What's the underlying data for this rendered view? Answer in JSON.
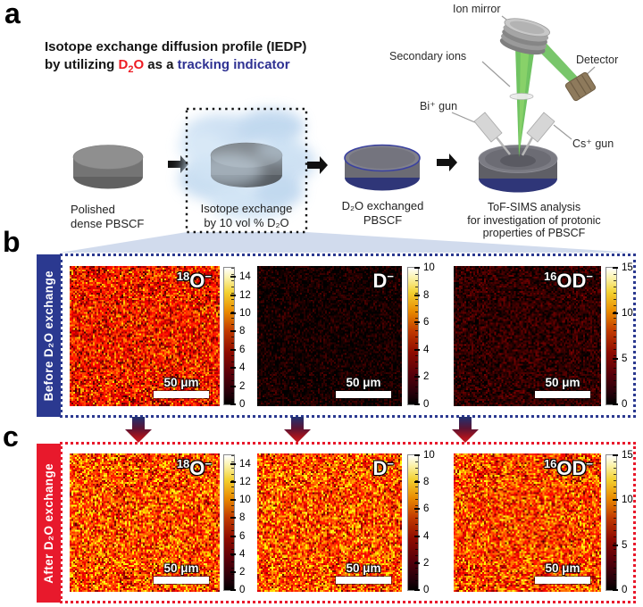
{
  "panel_a": {
    "label": "a",
    "title": {
      "line1": "Isotope exchange diffusion profile (IEDP)",
      "line2_pre": "by utilizing ",
      "d2o_d": "D",
      "d2o_sub": "2",
      "d2o_o": "O",
      "line2_mid": " as a ",
      "line2_highlight": "tracking indicator"
    },
    "steps": {
      "step1_line1": "Polished",
      "step1_line2": "dense PBSCF",
      "step2_line1": "Isotope exchange",
      "step2_line2": "by 10 vol % D₂O",
      "step3_line1": "D₂O exchanged",
      "step3_line2": "PBSCF",
      "step4_line1": "ToF-SIMS analysis",
      "step4_line2": "for investigation of protonic",
      "step4_line3": "properties of PBSCF"
    },
    "apparatus": {
      "ion_mirror": "Ion mirror",
      "secondary_ions": "Secondary ions",
      "detector": "Detector",
      "bi_gun": "Bi⁺ gun",
      "cs_gun": "Cs⁺ gun"
    },
    "colors": {
      "beam_green": "#57b846",
      "cloud_blue": "#c9def2",
      "d2o_red": "#ed1c24",
      "tracking_blue": "#2e3192"
    }
  },
  "panel_b": {
    "label": "b",
    "side_label": "Before D₂O exchange",
    "accent_color": "#2b3990",
    "maps": [
      {
        "species": {
          "sup_left": "18",
          "base": "O",
          "charge": "−"
        },
        "scalebar_label": "50 μm",
        "colorbar": {
          "min": 0,
          "max": 15,
          "ticks": [
            0,
            2,
            4,
            6,
            8,
            10,
            12,
            14
          ]
        },
        "noise": {
          "mean": 5.2,
          "spread": 2.6,
          "max": 15
        }
      },
      {
        "species": {
          "sup_left": "",
          "base": "D",
          "charge": "−"
        },
        "scalebar_label": "50 μm",
        "colorbar": {
          "min": 0,
          "max": 10,
          "ticks": [
            0,
            2,
            4,
            6,
            8,
            10
          ]
        },
        "noise": {
          "mean": 0.25,
          "spread": 0.55,
          "max": 10
        }
      },
      {
        "species": {
          "sup_left": "16",
          "base": "OD",
          "charge": "−"
        },
        "scalebar_label": "50 μm",
        "colorbar": {
          "min": 0,
          "max": 15,
          "ticks": [
            0,
            5,
            10,
            15
          ]
        },
        "noise": {
          "mean": 0.9,
          "spread": 1.0,
          "max": 15
        }
      }
    ]
  },
  "panel_c": {
    "label": "c",
    "side_label": "After D₂O exchange",
    "accent_color": "#e8192c",
    "maps": [
      {
        "species": {
          "sup_left": "18",
          "base": "O",
          "charge": "−"
        },
        "scalebar_label": "50 μm",
        "colorbar": {
          "min": 0,
          "max": 15,
          "ticks": [
            0,
            2,
            4,
            6,
            8,
            10,
            12,
            14
          ]
        },
        "noise": {
          "mean": 6.4,
          "spread": 3.0,
          "max": 15
        }
      },
      {
        "species": {
          "sup_left": "",
          "base": "D",
          "charge": "−"
        },
        "scalebar_label": "50 μm",
        "colorbar": {
          "min": 0,
          "max": 10,
          "ticks": [
            0,
            2,
            4,
            6,
            8,
            10
          ]
        },
        "noise": {
          "mean": 4.3,
          "spread": 2.0,
          "max": 10
        }
      },
      {
        "species": {
          "sup_left": "16",
          "base": "OD",
          "charge": "−"
        },
        "scalebar_label": "50 μm",
        "colorbar": {
          "min": 0,
          "max": 15,
          "ticks": [
            0,
            5,
            10,
            15
          ]
        },
        "noise": {
          "mean": 6.2,
          "spread": 2.9,
          "max": 15
        }
      }
    ]
  }
}
